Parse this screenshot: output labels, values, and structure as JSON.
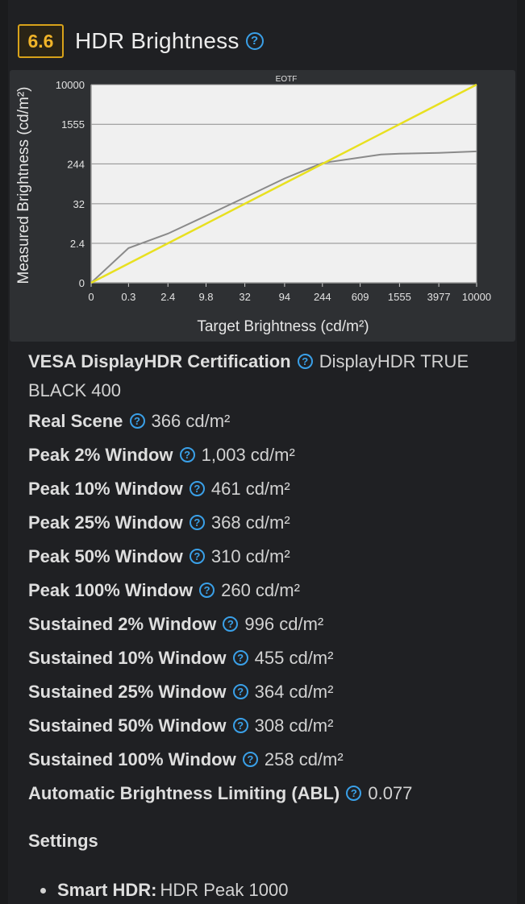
{
  "header": {
    "score": "6.6",
    "title": "HDR Brightness",
    "help_icon": "question-circle-icon"
  },
  "chart_data": {
    "type": "line",
    "title": "EOTF",
    "xlabel": "Target Brightness (cd/m²)",
    "ylabel": "Measured Brightness (cd/m²)",
    "x_ticks": [
      "0",
      "0.3",
      "2.4",
      "9.8",
      "32",
      "94",
      "244",
      "609",
      "1555",
      "3977",
      "10000"
    ],
    "y_ticks": [
      "0",
      "2.4",
      "32",
      "244",
      "1555",
      "10000"
    ],
    "scale": "PQ (perceptual)",
    "grid": true,
    "colors": {
      "target": "#e8e020",
      "measured": "#8a8a8a",
      "background": "#f0f0f0"
    },
    "series": [
      {
        "values": [
          [
            0,
            0
          ],
          [
            0.3,
            0.3
          ],
          [
            2.4,
            2.4
          ],
          [
            9.8,
            9.8
          ],
          [
            32,
            32
          ],
          [
            94,
            94
          ],
          [
            244,
            244
          ],
          [
            609,
            609
          ],
          [
            1555,
            1555
          ],
          [
            3977,
            3977
          ],
          [
            10000,
            10000
          ]
        ]
      },
      {
        "values": [
          [
            0,
            0
          ],
          [
            0.3,
            1.6
          ],
          [
            2.4,
            5
          ],
          [
            9.8,
            16
          ],
          [
            32,
            45
          ],
          [
            94,
            120
          ],
          [
            244,
            255
          ],
          [
            609,
            330
          ],
          [
            1000,
            380
          ],
          [
            1555,
            395
          ],
          [
            3977,
            410
          ],
          [
            10000,
            440
          ]
        ]
      }
    ]
  },
  "specs": [
    {
      "label": "VESA DisplayHDR Certification",
      "value": "DisplayHDR TRUE BLACK 400"
    },
    {
      "label": "Real Scene",
      "value": "366 cd/m²"
    },
    {
      "label": "Peak 2% Window",
      "value": "1,003 cd/m²"
    },
    {
      "label": "Peak 10% Window",
      "value": "461 cd/m²"
    },
    {
      "label": "Peak 25% Window",
      "value": "368 cd/m²"
    },
    {
      "label": "Peak 50% Window",
      "value": "310 cd/m²"
    },
    {
      "label": "Peak 100% Window",
      "value": "260 cd/m²"
    },
    {
      "label": "Sustained 2% Window",
      "value": "996 cd/m²"
    },
    {
      "label": "Sustained 10% Window",
      "value": "455 cd/m²"
    },
    {
      "label": "Sustained 25% Window",
      "value": "364 cd/m²"
    },
    {
      "label": "Sustained 50% Window",
      "value": "308 cd/m²"
    },
    {
      "label": "Sustained 100% Window",
      "value": "258 cd/m²"
    },
    {
      "label": "Automatic Brightness Limiting (ABL)",
      "value": "0.077"
    }
  ],
  "settings": {
    "title": "Settings",
    "items": [
      {
        "label": "Smart HDR:",
        "value": "HDR Peak 1000"
      }
    ]
  },
  "theme": {
    "accent": "#3aa0e8",
    "score_color": "#f0b429"
  }
}
